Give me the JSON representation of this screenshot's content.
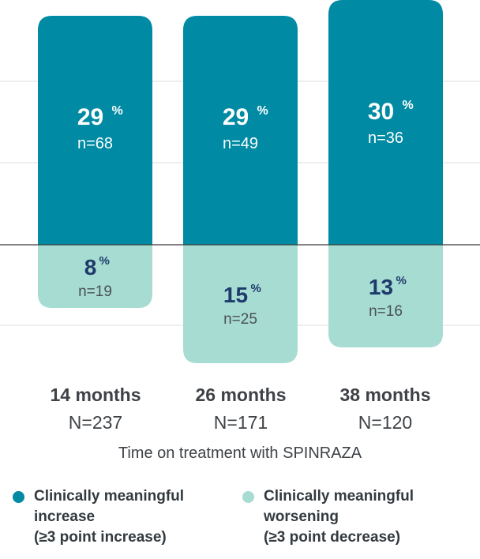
{
  "chart_data": {
    "type": "bar",
    "stacked_diverging": true,
    "categories": [
      "14 months",
      "26 months",
      "38 months"
    ],
    "category_n": [
      "N=237",
      "N=171",
      "N=120"
    ],
    "series": [
      {
        "name": "Clinically meaningful increase (≥3 point increase)",
        "color": "#008aa3",
        "values": [
          29,
          29,
          30
        ],
        "labels": [
          "29",
          "29",
          "30"
        ],
        "n_labels": [
          "n=68",
          "n=49",
          "n=36"
        ]
      },
      {
        "name": "Clinically meaningful worsening (≥3 point decrease)",
        "color": "#a7dcd2",
        "values": [
          8,
          15,
          13
        ],
        "labels": [
          "8",
          "15",
          "13"
        ],
        "n_labels": [
          "n=19",
          "n=25",
          "n=16"
        ]
      }
    ],
    "percent_sign": "%",
    "xlabel": "Time on treatment with SPINRAZA",
    "ylabel": "",
    "title": "",
    "grid": true
  },
  "legend": {
    "items": [
      {
        "lines": [
          "Clinically meaningful",
          "increase",
          "(≥3 point increase)"
        ],
        "color": "#008aa3"
      },
      {
        "lines": [
          "Clinically meaningful",
          "worsening",
          "(≥3 point decrease)"
        ],
        "color": "#a7dcd2"
      }
    ]
  }
}
